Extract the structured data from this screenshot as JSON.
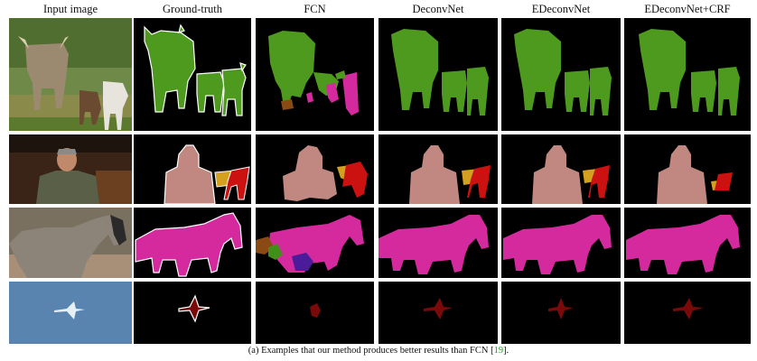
{
  "headers": [
    "Input image",
    "Ground-truth",
    "FCN",
    "DeconvNet",
    "EDeconvNet",
    "EDeconvNet+CRF"
  ],
  "caption": {
    "before": "(a)  Examples that our method produces better results than FCN [",
    "ref": "19",
    "after": "]."
  },
  "colors": {
    "cow": "#4e9a1e",
    "person": "#c08880",
    "chair": "#cc1111",
    "table": "#d4a020",
    "horse": "#d42a9e",
    "aeroplane": "#7a0a0a",
    "boundary": "#ffffff",
    "background": "#000000",
    "fcn_brown": "#8a4a14",
    "fcn_green": "#3f8f18",
    "fcn_purple": "#4a1c9a",
    "fcn_orange": "#a0641e"
  },
  "rows": [
    "cows",
    "person",
    "horse",
    "aeroplane"
  ]
}
